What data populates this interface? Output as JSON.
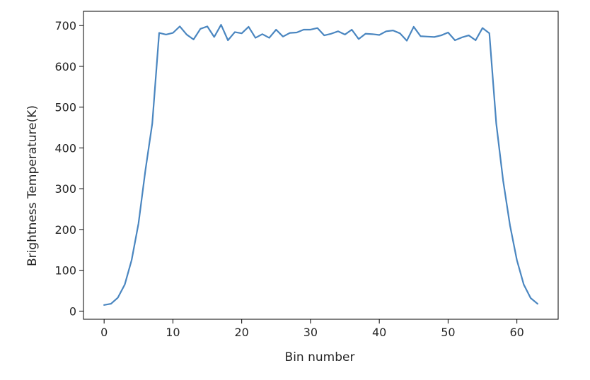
{
  "chart_data": {
    "type": "line",
    "title": "",
    "xlabel": "Bin number",
    "ylabel": "Brightness Temperature(K)",
    "xlim": [
      -3,
      66
    ],
    "ylim": [
      -20,
      735
    ],
    "x_ticks": [
      0,
      10,
      20,
      30,
      40,
      50,
      60
    ],
    "y_ticks": [
      0,
      100,
      200,
      300,
      400,
      500,
      600,
      700
    ],
    "grid": false,
    "legend": "none",
    "series": [
      {
        "color": "#4a86c0",
        "x": [
          0,
          1,
          2,
          3,
          4,
          5,
          6,
          7,
          8,
          9,
          10,
          11,
          12,
          13,
          14,
          15,
          16,
          17,
          18,
          19,
          20,
          21,
          22,
          23,
          24,
          25,
          26,
          27,
          28,
          29,
          30,
          31,
          32,
          33,
          34,
          35,
          36,
          37,
          38,
          39,
          40,
          41,
          42,
          43,
          44,
          45,
          46,
          47,
          48,
          49,
          50,
          51,
          52,
          53,
          54,
          55,
          56,
          57,
          58,
          59,
          60,
          61,
          62,
          63
        ],
        "y": [
          15,
          18,
          33,
          65,
          125,
          215,
          345,
          460,
          682,
          678,
          682,
          698,
          678,
          666,
          692,
          698,
          672,
          702,
          664,
          684,
          681,
          697,
          670,
          679,
          670,
          690,
          673,
          682,
          683,
          690,
          690,
          694,
          676,
          680,
          686,
          678,
          690,
          667,
          680,
          679,
          677,
          686,
          688,
          681,
          663,
          697,
          674,
          673,
          672,
          676,
          683,
          664,
          671,
          676,
          664,
          694,
          681,
          460,
          320,
          210,
          125,
          65,
          32,
          18
        ]
      }
    ]
  }
}
